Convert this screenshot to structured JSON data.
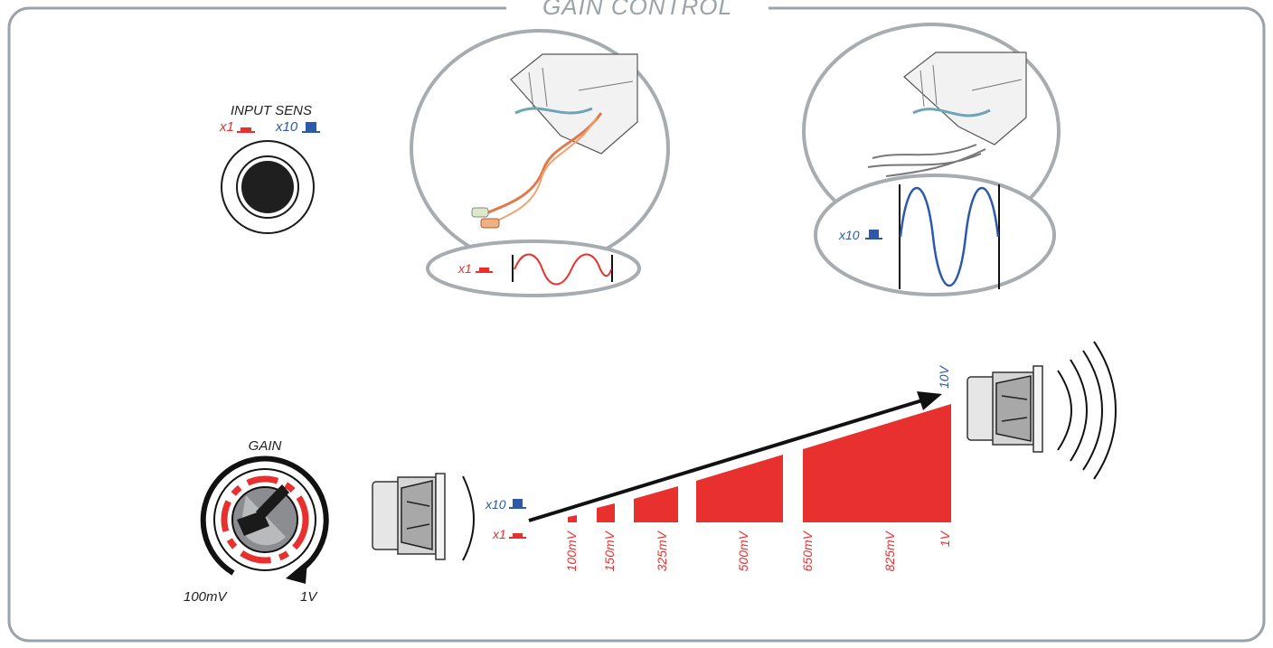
{
  "title": "GAIN CONTROL",
  "input_sens": {
    "label": "INPUT SENS",
    "x1_label": "x1",
    "x10_label": "x10"
  },
  "waveform_x1": {
    "label": "x1"
  },
  "waveform_x10": {
    "label": "x10"
  },
  "gain_knob": {
    "label": "GAIN",
    "min_label": "100mV",
    "max_label": "1V"
  },
  "ramp": {
    "x10_label": "x10",
    "x1_label": "x1",
    "top_label": "10V",
    "scale": [
      "100mV",
      "150mV",
      "325mV",
      "500mV",
      "650mV",
      "825mV",
      "1V"
    ]
  },
  "colors": {
    "red": "#e8312f",
    "blue": "#2d59a8",
    "gray": "#9aa3aa",
    "black": "#1a1a1a"
  }
}
